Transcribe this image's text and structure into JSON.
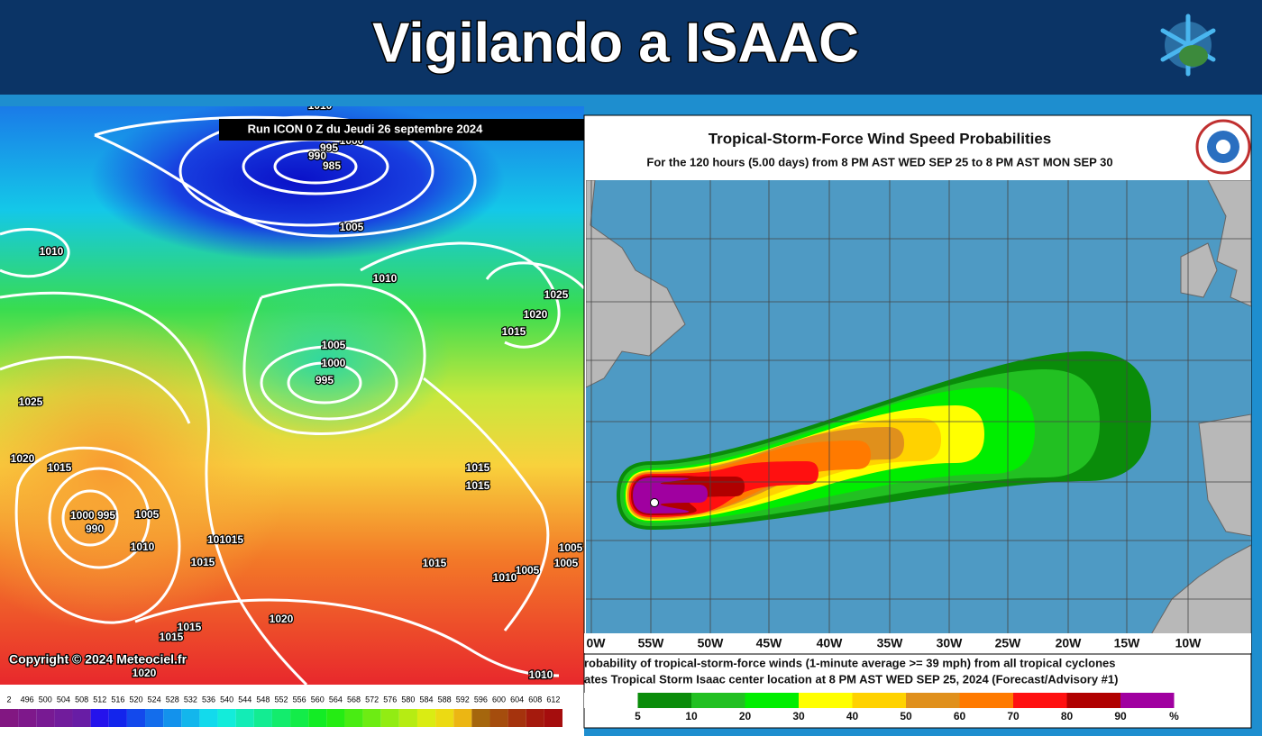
{
  "header": {
    "title": "Vigilando a ISAAC"
  },
  "left_map": {
    "run_label": "Run ICON 0 Z du Jeudi 26 septembre 2024",
    "copyright": "Copyright © 2024 Meteociel.fr",
    "isobar_labels": [
      "1010",
      "1000",
      "995",
      "990",
      "985",
      "1005",
      "1010",
      "1010",
      "1025",
      "1020",
      "1015",
      "1005",
      "1000",
      "995",
      "1025",
      "1020",
      "1015",
      "1015",
      "1015",
      "1000 995",
      "990",
      "1005",
      "1010",
      "101015",
      "1015",
      "1015",
      "1005",
      "1010",
      "1005",
      "1005",
      "1020",
      "1015",
      "1015",
      "1020",
      "1010"
    ],
    "scale_labels": [
      "2",
      "496",
      "500",
      "504",
      "508",
      "512",
      "516",
      "520",
      "524",
      "528",
      "532",
      "536",
      "540",
      "544",
      "548",
      "552",
      "556",
      "560",
      "564",
      "568",
      "572",
      "576",
      "580",
      "584",
      "588",
      "592",
      "596",
      "600",
      "604",
      "608",
      "612"
    ]
  },
  "right_map": {
    "title": "Tropical-Storm-Force Wind Speed Probabilities",
    "subtitle": "For the 120 hours (5.00 days) from 8 PM AST WED SEP 25 to 8 PM AST MON SEP 30",
    "longitude_labels": [
      "0W",
      "55W",
      "50W",
      "45W",
      "40W",
      "35W",
      "30W",
      "25W",
      "20W",
      "15W",
      "10W"
    ],
    "caption": [
      "robability of tropical-storm-force winds (1-minute average >= 39 mph) from all tropical cyclones",
      "ates Tropical Storm Isaac center location at 8 PM AST WED SEP 25, 2024 (Forecast/Advisory #1)"
    ],
    "legend_labels": [
      "5",
      "10",
      "20",
      "30",
      "40",
      "50",
      "60",
      "70",
      "80",
      "90",
      "%"
    ]
  }
}
